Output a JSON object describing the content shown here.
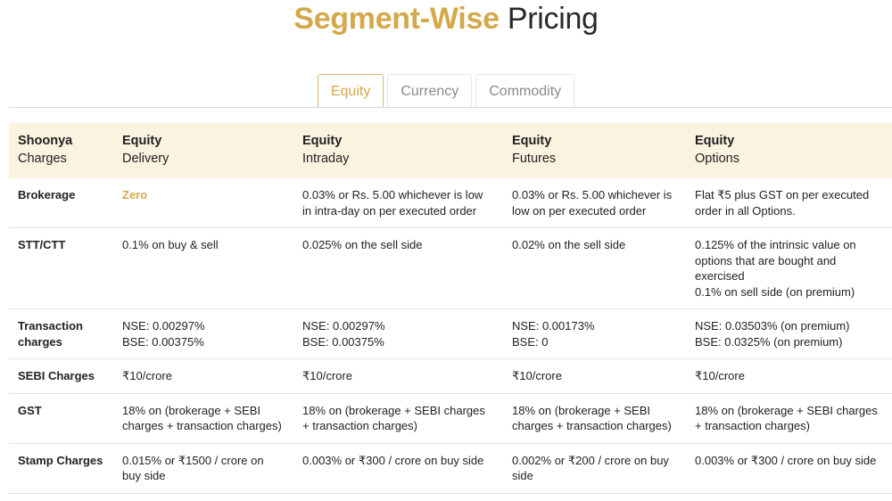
{
  "page": {
    "title_highlight": "Segment-Wise",
    "title_rest": "Pricing"
  },
  "tabs": [
    {
      "label": "Equity",
      "active": true
    },
    {
      "label": "Currency",
      "active": false
    },
    {
      "label": "Commodity",
      "active": false
    }
  ],
  "colors": {
    "accent": "#d4a84b",
    "header_bg": "#fbf3e0"
  },
  "table": {
    "headers": [
      {
        "line1": "Shoonya",
        "line2": "Charges"
      },
      {
        "line1": "Equity",
        "line2": "Delivery"
      },
      {
        "line1": "Equity",
        "line2": "Intraday"
      },
      {
        "line1": "Equity",
        "line2": "Futures"
      },
      {
        "line1": "Equity",
        "line2": "Options"
      }
    ],
    "rows": [
      {
        "label": "Brokerage",
        "cells": [
          [
            "Zero"
          ],
          [
            "0.03% or Rs. 5.00 whichever is low in intra-day on per executed order"
          ],
          [
            "0.03% or Rs. 5.00 whichever is low on per executed order"
          ],
          [
            "Flat ₹5 plus GST on per executed order in all Options."
          ]
        ]
      },
      {
        "label": "STT/CTT",
        "cells": [
          [
            "0.1% on buy & sell"
          ],
          [
            "0.025% on the sell side"
          ],
          [
            "0.02% on the sell side"
          ],
          [
            "0.125% of the intrinsic value on options that are bought and exercised",
            "0.1% on sell side (on premium)"
          ]
        ]
      },
      {
        "label": "Transaction charges",
        "cells": [
          [
            "NSE: 0.00297%",
            "BSE: 0.00375%"
          ],
          [
            "NSE: 0.00297%",
            "BSE: 0.00375%"
          ],
          [
            "NSE: 0.00173%",
            "BSE: 0"
          ],
          [
            "NSE: 0.03503% (on premium)",
            "BSE: 0.0325% (on premium)"
          ]
        ]
      },
      {
        "label": "SEBI Charges",
        "cells": [
          [
            "₹10/crore"
          ],
          [
            "₹10/crore"
          ],
          [
            "₹10/crore"
          ],
          [
            "₹10/crore"
          ]
        ]
      },
      {
        "label": "GST",
        "cells": [
          [
            "18% on (brokerage + SEBI charges + transaction charges)"
          ],
          [
            "18% on (brokerage + SEBI charges + transaction charges)"
          ],
          [
            "18% on (brokerage + SEBI charges + transaction charges)"
          ],
          [
            "18% on (brokerage + SEBI charges + transaction charges)"
          ]
        ]
      },
      {
        "label": "Stamp Charges",
        "cells": [
          [
            "0.015% or ₹1500 / crore on buy side"
          ],
          [
            "0.003% or ₹300 / crore on buy side"
          ],
          [
            "0.002% or ₹200 / crore on buy side"
          ],
          [
            "0.003% or ₹300 / crore on buy side"
          ]
        ]
      }
    ]
  }
}
